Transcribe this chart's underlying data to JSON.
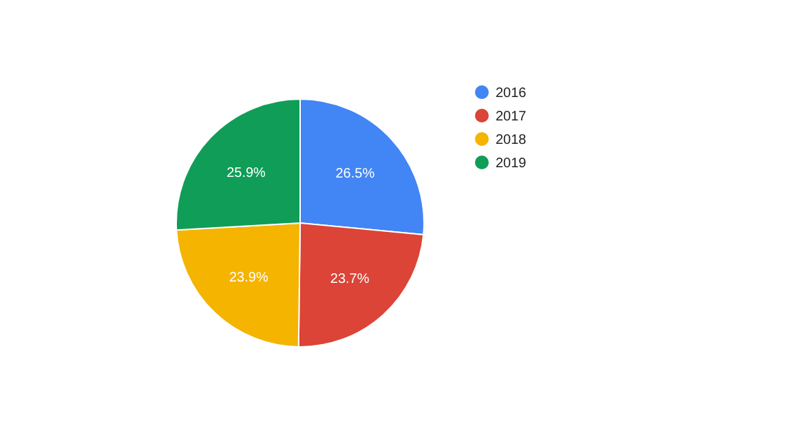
{
  "chart_data": {
    "type": "pie",
    "categories": [
      "2016",
      "2017",
      "2018",
      "2019"
    ],
    "values": [
      26.5,
      23.7,
      23.9,
      25.9
    ],
    "colors": [
      "#4285f4",
      "#db4437",
      "#f4b400",
      "#0f9d58"
    ],
    "value_labels": [
      "26.5%",
      "23.7%",
      "23.9%",
      "25.9%"
    ],
    "legend": "top right"
  }
}
